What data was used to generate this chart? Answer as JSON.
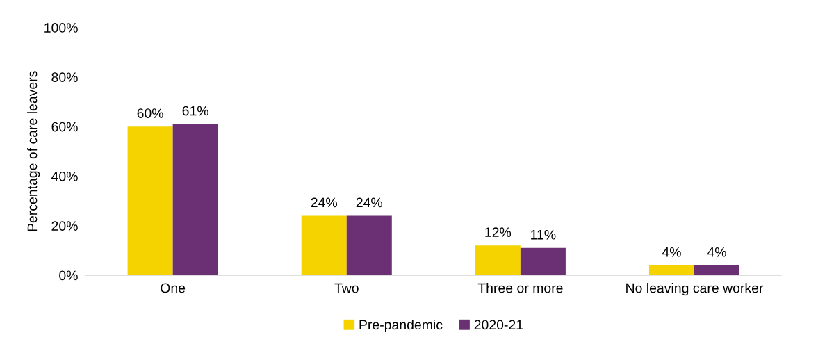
{
  "chart_data": {
    "type": "bar",
    "ylabel": "Percentage of care leavers",
    "categories": [
      "One",
      "Two",
      "Three or more",
      "No leaving care worker"
    ],
    "series": [
      {
        "name": "Pre-pandemic",
        "color": "#f5d300",
        "values": [
          60,
          24,
          12,
          4
        ],
        "value_labels": [
          "60%",
          "24%",
          "12%",
          "4%"
        ]
      },
      {
        "name": "2020-21",
        "color": "#6b2f73",
        "values": [
          61,
          24,
          11,
          4
        ],
        "value_labels": [
          "61%",
          "24%",
          "11%",
          "4%"
        ]
      }
    ],
    "ylim": [
      0,
      100
    ],
    "yticks": [
      {
        "value": 0,
        "label": "0%"
      },
      {
        "value": 20,
        "label": "20%"
      },
      {
        "value": 40,
        "label": "40%"
      },
      {
        "value": 60,
        "label": "60%"
      },
      {
        "value": 80,
        "label": "80%"
      },
      {
        "value": 100,
        "label": "100%"
      }
    ],
    "grid": false,
    "legend": "bottom"
  }
}
